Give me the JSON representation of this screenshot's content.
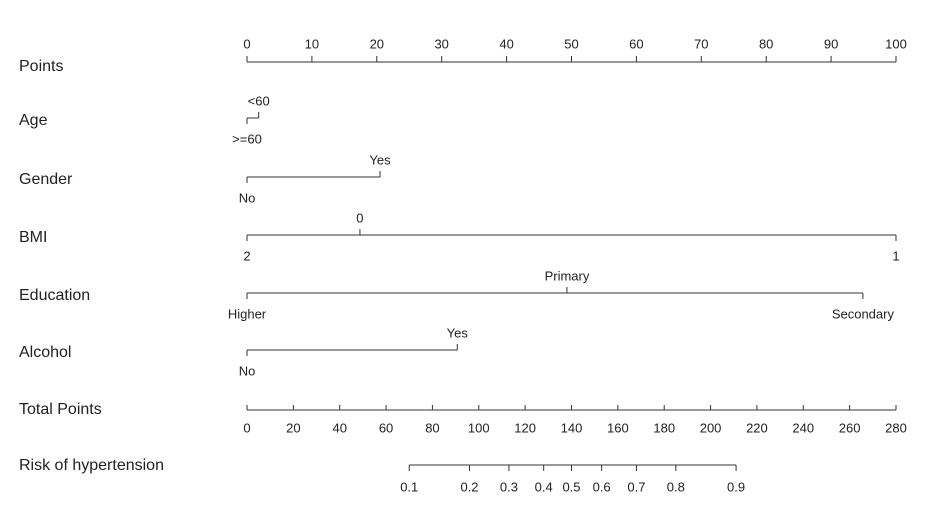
{
  "chart_data": {
    "type": "nomogram",
    "points_axis": {
      "label": "Points",
      "xlim": [
        0,
        100
      ],
      "xticks": [
        0,
        10,
        20,
        30,
        40,
        50,
        60,
        70,
        80,
        90,
        100
      ]
    },
    "variables": [
      {
        "name": "Age",
        "levels": [
          {
            "label": "<60",
            "points": 1.8,
            "side": "above"
          },
          {
            "label": ">=60",
            "points": 0,
            "side": "below"
          }
        ]
      },
      {
        "name": "Gender",
        "levels": [
          {
            "label": "Yes",
            "points": 20.5,
            "side": "above"
          },
          {
            "label": "No",
            "points": 0,
            "side": "below"
          }
        ]
      },
      {
        "name": "BMI",
        "levels": [
          {
            "label": "0",
            "points": 17.4,
            "side": "above"
          },
          {
            "label": "2",
            "points": 0,
            "side": "below"
          },
          {
            "label": "1",
            "points": 100,
            "side": "below"
          }
        ]
      },
      {
        "name": "Education",
        "levels": [
          {
            "label": "Primary",
            "points": 49.3,
            "side": "above"
          },
          {
            "label": "Higher",
            "points": 0,
            "side": "below"
          },
          {
            "label": "Secondary",
            "points": 94.9,
            "side": "below"
          }
        ]
      },
      {
        "name": "Alcohol",
        "levels": [
          {
            "label": "Yes",
            "points": 32.4,
            "side": "above"
          },
          {
            "label": "No",
            "points": 0,
            "side": "below"
          }
        ]
      }
    ],
    "total_points": {
      "label": "Total Points",
      "xlim": [
        0,
        280
      ],
      "xticks": [
        0,
        20,
        40,
        60,
        80,
        100,
        120,
        140,
        160,
        180,
        200,
        220,
        240,
        260,
        280
      ]
    },
    "risk": {
      "label": "Risk of hypertension",
      "ticks": [
        0.1,
        0.2,
        0.3,
        0.4,
        0.5,
        0.6,
        0.7,
        0.8,
        0.9
      ],
      "points": [
        70,
        96,
        113,
        128,
        140,
        153,
        168,
        185,
        211
      ]
    }
  }
}
